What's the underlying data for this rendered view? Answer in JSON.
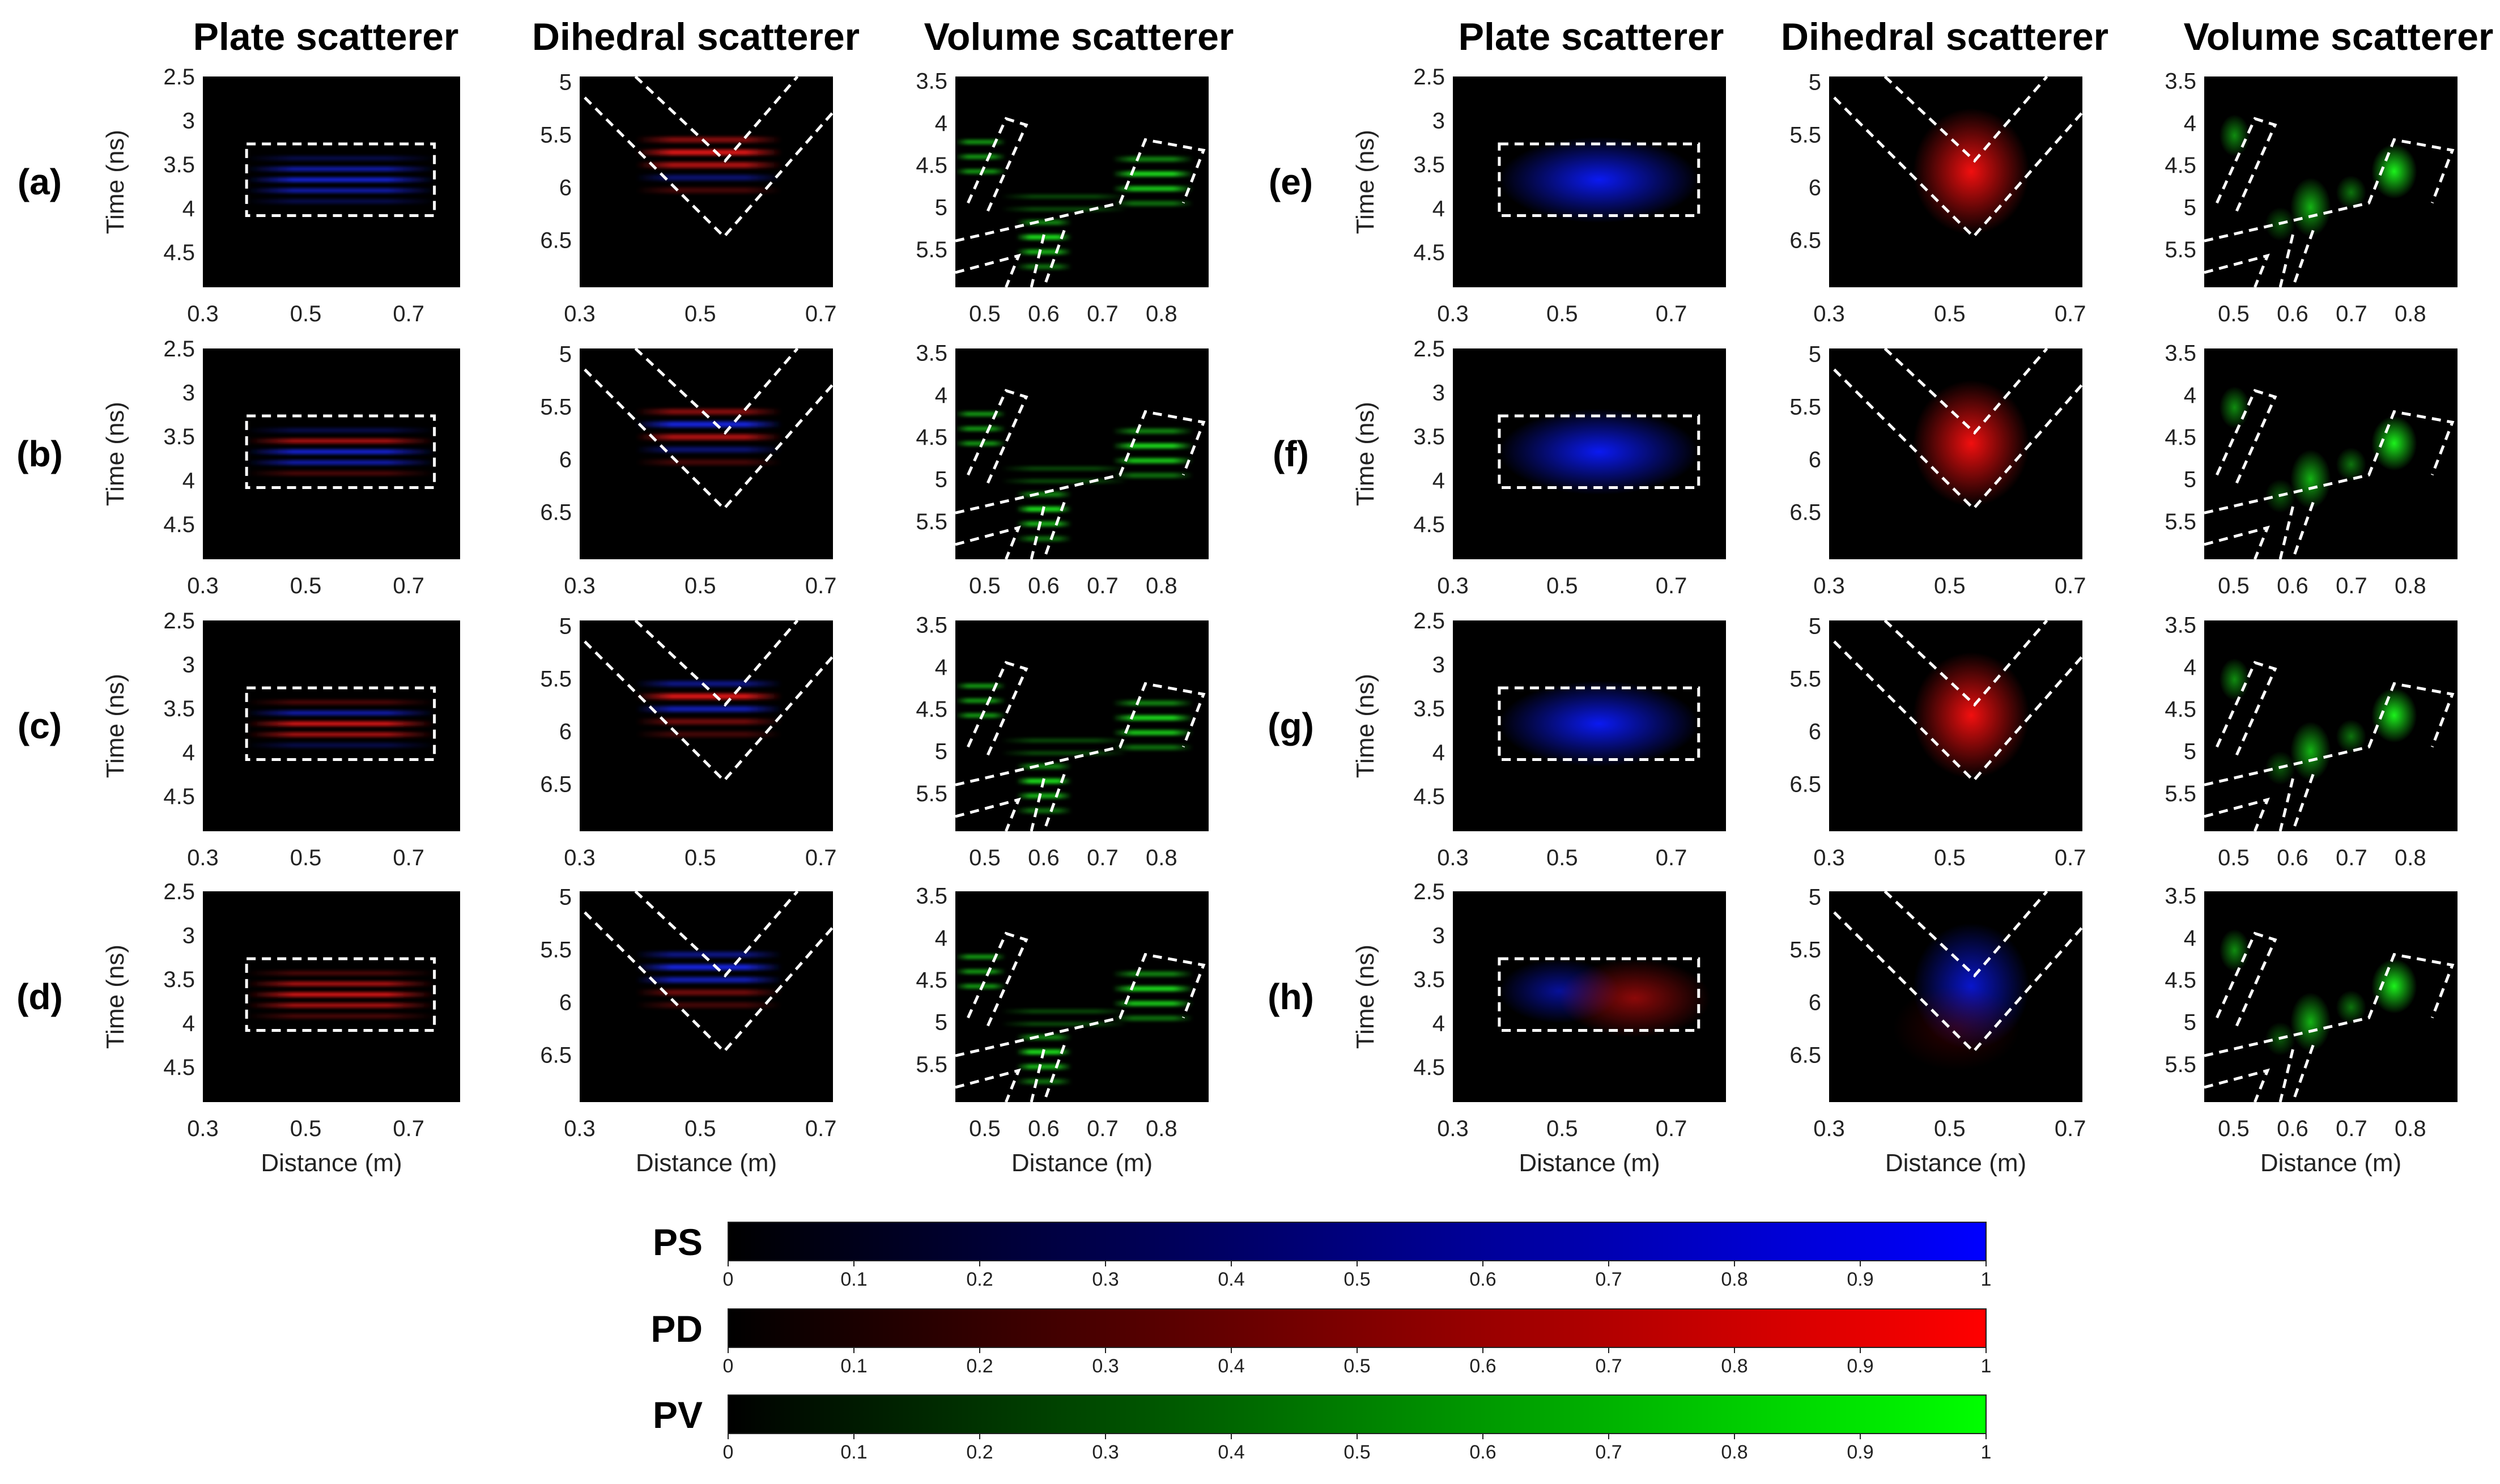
{
  "chart_data": {
    "type": "heatmap",
    "description_panels": "8 rows (a)-(h) x 3 scatterer columns",
    "column_titles": [
      "Plate scatterer",
      "Dihedral scatterer",
      "Volume scatterer"
    ],
    "row_labels_left": [
      "(a)",
      "(b)",
      "(c)",
      "(d)"
    ],
    "row_labels_right": [
      "(e)",
      "(f)",
      "(g)",
      "(h)"
    ],
    "ylabel": "Time (ns)",
    "xlabel": "Distance (m)",
    "axes": {
      "plate": {
        "x_ticks": [
          "0.3",
          "0.5",
          "0.7"
        ],
        "y_ticks": [
          "2.5",
          "3",
          "3.5",
          "4",
          "4.5"
        ],
        "xlim": [
          0.3,
          0.8
        ],
        "ylim": [
          2.5,
          4.9
        ]
      },
      "dihedral": {
        "x_ticks": [
          "0.3",
          "0.5",
          "0.7"
        ],
        "y_ticks": [
          "5",
          "5.5",
          "6",
          "6.5"
        ],
        "xlim": [
          0.3,
          0.72
        ],
        "ylim": [
          4.95,
          6.95
        ]
      },
      "volume": {
        "x_ticks": [
          "0.5",
          "0.6",
          "0.7",
          "0.8"
        ],
        "y_ticks": [
          "3.5",
          "4",
          "4.5",
          "5",
          "5.5"
        ],
        "xlim": [
          0.45,
          0.88
        ],
        "ylim": [
          3.45,
          5.95
        ]
      }
    },
    "panels_left_plate": [
      {
        "label": "(a)",
        "color": "blue"
      },
      {
        "label": "(b)",
        "color": "mixed"
      },
      {
        "label": "(c)",
        "color": "mixed-red"
      },
      {
        "label": "(d)",
        "color": "red"
      }
    ],
    "panels_left_dihedral": [
      {
        "label": "(a)",
        "color": "red"
      },
      {
        "label": "(b)",
        "color": "mixed"
      },
      {
        "label": "(c)",
        "color": "mixed-blue"
      },
      {
        "label": "(d)",
        "color": "blue"
      }
    ],
    "panels_right_plate": [
      {
        "label": "(e)",
        "color": "blue"
      },
      {
        "label": "(f)",
        "color": "blue"
      },
      {
        "label": "(g)",
        "color": "blue"
      },
      {
        "label": "(h)",
        "color": "blue-red"
      }
    ],
    "panels_right_dihedral": [
      {
        "label": "(e)",
        "color": "red"
      },
      {
        "label": "(f)",
        "color": "red"
      },
      {
        "label": "(g)",
        "color": "red"
      },
      {
        "label": "(h)",
        "color": "blue"
      }
    ],
    "colorbars": [
      {
        "label": "PS",
        "color": "#0000ff"
      },
      {
        "label": "PD",
        "color": "#ff0000"
      },
      {
        "label": "PV",
        "color": "#00ff00"
      }
    ],
    "colorbar_ticks": [
      "0",
      "0.1",
      "0.2",
      "0.3",
      "0.4",
      "0.5",
      "0.6",
      "0.7",
      "0.8",
      "0.9",
      "1"
    ]
  }
}
